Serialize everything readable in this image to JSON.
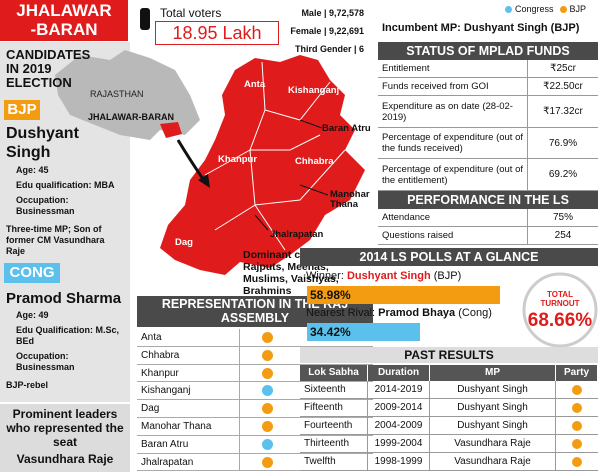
{
  "header": {
    "line1": "JHALAWAR",
    "line2": "-BARAN"
  },
  "voters": {
    "label": "Total voters",
    "total": "18.95 Lakh",
    "male": "Male | 9,72,578",
    "female": "Female | 9,22,691",
    "third_gender": "Third Gender | 6"
  },
  "candidates": {
    "title": "CANDIDATES IN 2019 ELECTION",
    "bjp": {
      "party": "BJP",
      "name": "Dushyant Singh",
      "details": [
        "Age: 45",
        "Edu qualification: MBA",
        "Occupation: Businessman"
      ],
      "note": "Three-time MP; Son of former CM Vasundhara Raje"
    },
    "cong": {
      "party": "CONG",
      "name": "Pramod Sharma",
      "details": [
        "Age: 49",
        "Edu Qualification: M.Sc, BEd",
        "Occupation: Businessman"
      ],
      "note": "BJP-rebel"
    }
  },
  "prominent": {
    "title": "Prominent leaders who represented the seat",
    "name": "Vasundhara Raje"
  },
  "map": {
    "state": "RAJASTHAN",
    "constituency": "JHALAWAR-BARAN",
    "districts": [
      "Anta",
      "Kishanganj",
      "Baran Atru",
      "Khanpur",
      "Chhabra",
      "Manohar Thana",
      "Jhalrapatan",
      "Dag"
    ],
    "castes_title": "Dominant castes:",
    "castes": "Rajputs, Meenas, Muslims, Vaishyas, Brahmins"
  },
  "assembly": {
    "title": "REPRESENTATION IN THE RAJ ASSEMBLY",
    "rows": [
      {
        "name": "Anta",
        "color": "#f39c12"
      },
      {
        "name": "Chhabra",
        "color": "#f39c12"
      },
      {
        "name": "Khanpur",
        "color": "#f39c12"
      },
      {
        "name": "Kishanganj",
        "color": "#5bc0eb"
      },
      {
        "name": "Dag",
        "color": "#f39c12"
      },
      {
        "name": "Manohar Thana",
        "color": "#f39c12"
      },
      {
        "name": "Baran Atru",
        "color": "#5bc0eb"
      },
      {
        "name": "Jhalrapatan",
        "color": "#f39c12"
      }
    ]
  },
  "legend": [
    {
      "name": "Congress",
      "color": "#5bc0eb"
    },
    {
      "name": "BJP",
      "color": "#f39c12"
    }
  ],
  "incumbent": {
    "label": "Incumbent MP:",
    "name": "Dushyant Singh (BJP)"
  },
  "mplad": {
    "title": "STATUS OF MPLAD FUNDS",
    "rows": [
      [
        "Entitlement",
        "₹25cr"
      ],
      [
        "Funds received from GOI",
        "₹22.50cr"
      ],
      [
        "Expenditure as on date (28-02-2019)",
        "₹17.32cr"
      ],
      [
        "Percentage of expenditure (out of the funds received)",
        "76.9%"
      ],
      [
        "Percentage of expenditure (out of the entitlement)",
        "69.2%"
      ]
    ]
  },
  "performance": {
    "title": "PERFORMANCE IN THE LS",
    "rows": [
      [
        "Attendance",
        "75%"
      ],
      [
        "Questions raised",
        "254"
      ]
    ]
  },
  "polls": {
    "title": "2014 LS POLLS AT A GLANCE",
    "winner": {
      "label": "Winner:",
      "name": "Dushyant Singh",
      "party": "(BJP)",
      "value": 58.98,
      "value_label": "58.98%",
      "color": "#f39c12"
    },
    "rival": {
      "label": "Nearest Rival:",
      "name": "Pramod Bhaya",
      "party": "(Cong)",
      "value": 34.42,
      "value_label": "34.42%",
      "color": "#5bc0eb"
    },
    "turnout": {
      "label": "TOTAL TURNOUT",
      "value": "68.66%"
    }
  },
  "past_results": {
    "title": "PAST RESULTS",
    "columns": [
      "Lok Sabha",
      "Duration",
      "MP",
      "Party"
    ],
    "rows": [
      {
        "lok_sabha": "Sixteenth",
        "duration": "2014-2019",
        "mp": "Dushyant Singh",
        "color": "#f39c12"
      },
      {
        "lok_sabha": "Fifteenth",
        "duration": "2009-2014",
        "mp": "Dushyant Singh",
        "color": "#f39c12"
      },
      {
        "lok_sabha": "Fourteenth",
        "duration": "2004-2009",
        "mp": "Dushyant Singh",
        "color": "#f39c12"
      },
      {
        "lok_sabha": "Thirteenth",
        "duration": "1999-2004",
        "mp": "Vasundhara Raje",
        "color": "#f39c12"
      },
      {
        "lok_sabha": "Twelfth",
        "duration": "1998-1999",
        "mp": "Vasundhara Raje",
        "color": "#f39c12"
      }
    ]
  }
}
